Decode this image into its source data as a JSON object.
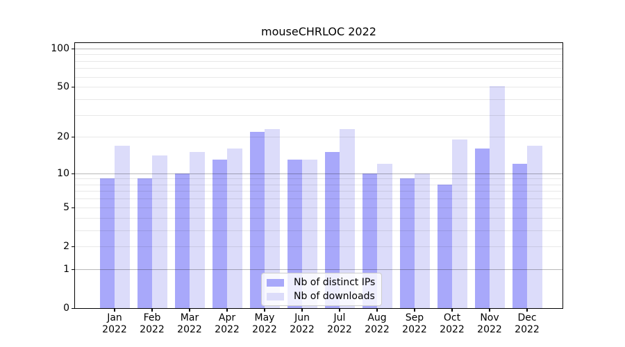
{
  "title": "mouseCHRLOC 2022",
  "chart_data": {
    "type": "bar",
    "title": "mouseCHRLOC 2022",
    "categories": [
      "Jan",
      "Feb",
      "Mar",
      "Apr",
      "May",
      "Jun",
      "Jul",
      "Aug",
      "Sep",
      "Oct",
      "Nov",
      "Dec"
    ],
    "category_year": "2022",
    "series": [
      {
        "name": "Nb of distinct IPs",
        "color": "#a8a8fa",
        "values": [
          9,
          9,
          10,
          13,
          22,
          13,
          15,
          10,
          9,
          8,
          16,
          12
        ]
      },
      {
        "name": "Nb of downloads",
        "color": "#dcdcfa",
        "values": [
          17,
          14,
          15,
          16,
          23,
          13,
          23,
          12,
          10,
          19,
          51,
          17
        ]
      }
    ],
    "yscale": "log1p",
    "ylim": [
      0,
      110
    ],
    "yticks": [
      0,
      1,
      2,
      5,
      10,
      20,
      50,
      100
    ],
    "grid_major": [
      1,
      10,
      100
    ],
    "grid_minor": [
      2,
      3,
      4,
      5,
      6,
      7,
      8,
      9,
      20,
      30,
      40,
      50,
      60,
      70,
      80,
      90
    ],
    "grid": true,
    "legend_position": "lower-center",
    "background_color": "#ffffff",
    "axis_color": "#000000"
  }
}
